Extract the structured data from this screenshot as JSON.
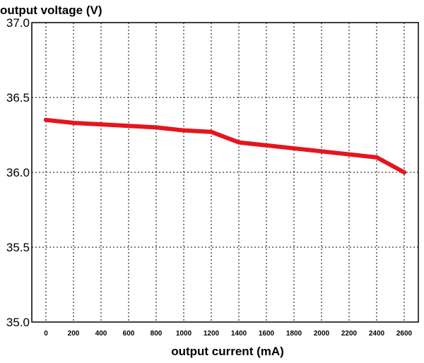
{
  "chart_data": {
    "type": "line",
    "title": "",
    "ylabel": "output voltage (V)",
    "xlabel": "output current (mA)",
    "xlim": [
      0,
      2600
    ],
    "ylim": [
      35.0,
      37.0
    ],
    "x_ticks": [
      0,
      200,
      400,
      600,
      800,
      1000,
      1200,
      1400,
      1600,
      1800,
      2000,
      2200,
      2400,
      2600
    ],
    "y_ticks": [
      "35.0",
      "35.5",
      "36.0",
      "36.5",
      "37.0"
    ],
    "grid": true,
    "series": [
      {
        "name": "",
        "color": "#e3161e",
        "x": [
          0,
          200,
          400,
          600,
          800,
          1000,
          1200,
          1400,
          1600,
          1800,
          2000,
          2200,
          2400,
          2600
        ],
        "y": [
          36.35,
          36.33,
          36.32,
          36.31,
          36.3,
          36.28,
          36.27,
          36.2,
          36.18,
          36.16,
          36.14,
          36.12,
          36.1,
          36.0
        ]
      }
    ]
  }
}
